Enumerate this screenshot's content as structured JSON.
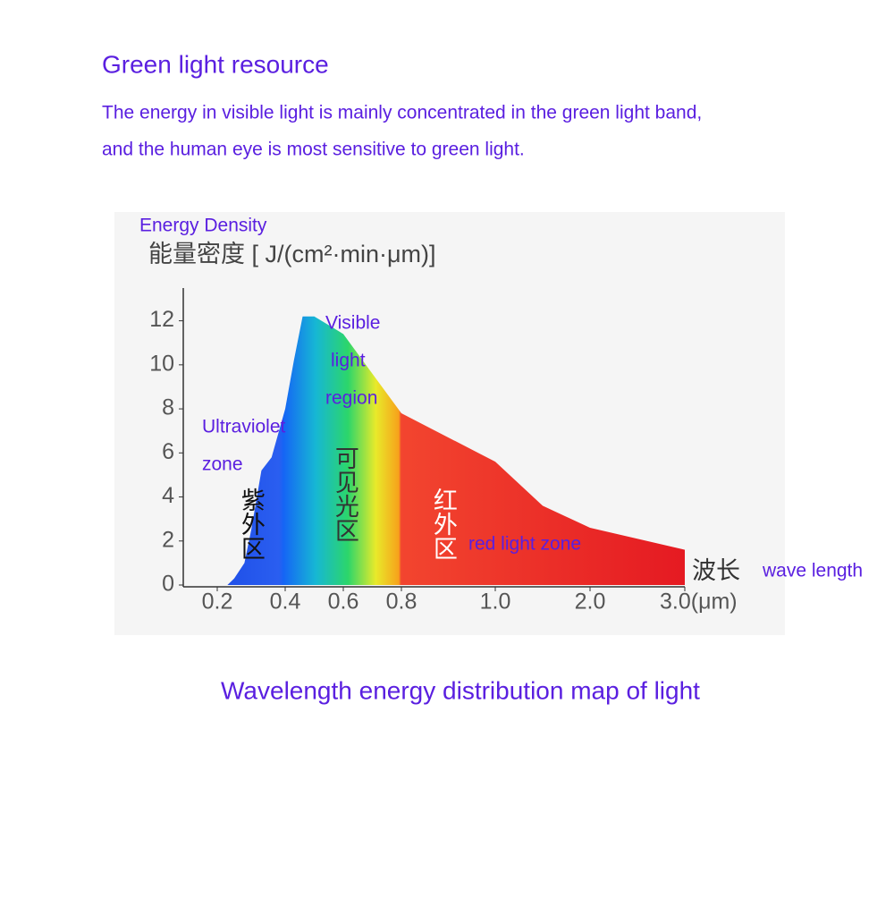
{
  "header": {
    "title": "Green light resource",
    "lines": [
      "The energy in visible light is mainly concentrated in the green light band,",
      "and the human eye is most sensitive to green light."
    ]
  },
  "chart_data": {
    "type": "area",
    "ylabel_en": "Energy Density",
    "ylabel": "能量密度 [ J/(cm²·min·μm)]",
    "xlabel": "波长",
    "xlabel_en": "wave length",
    "caption": "Wavelength energy distribution map of light",
    "x": [
      0.23,
      0.25,
      0.28,
      0.3,
      0.33,
      0.36,
      0.4,
      0.43,
      0.46,
      0.5,
      0.55,
      0.6,
      0.7,
      0.8,
      1.0,
      1.5,
      2.0,
      3.0
    ],
    "values": [
      0,
      0.3,
      1,
      2.5,
      5.2,
      5.8,
      8,
      10.2,
      12.2,
      12.2,
      11.8,
      11.4,
      9.6,
      7.8,
      5.6,
      3.6,
      2.6,
      1.6
    ],
    "ylim": [
      0,
      13
    ],
    "yticks": [
      0,
      2,
      4,
      6,
      8,
      10,
      12
    ],
    "xticks": [
      0.2,
      0.4,
      0.6,
      0.8,
      {
        "value": 1,
        "label": "1.0"
      },
      {
        "value": 2,
        "label": "2.0"
      },
      {
        "value": 3,
        "label": "3.0(μm)"
      }
    ],
    "annotations": [
      "Ultraviolet",
      "zone",
      "Visible",
      "light",
      "region",
      "紫外区",
      "可见光区",
      "红外区",
      "red light zone"
    ]
  }
}
